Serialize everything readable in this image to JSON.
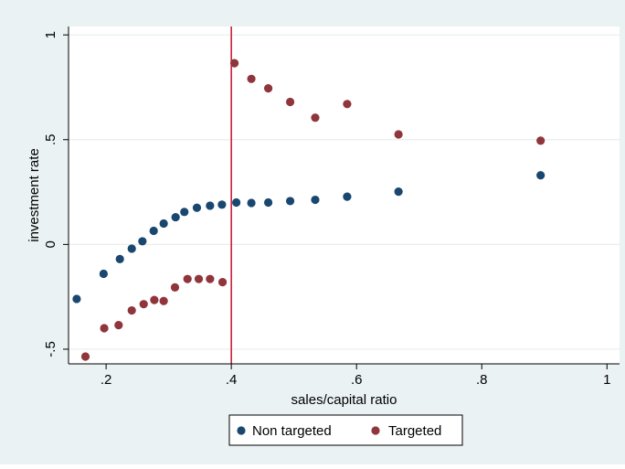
{
  "chart_data": {
    "type": "scatter",
    "xlabel": "sales/capital ratio",
    "ylabel": "investment rate",
    "xlim": [
      0.14,
      1.02
    ],
    "ylim": [
      -0.57,
      1.04
    ],
    "xticks": [
      {
        "value": 0.2,
        "label": ".2"
      },
      {
        "value": 0.4,
        "label": ".4"
      },
      {
        "value": 0.6,
        "label": ".6"
      },
      {
        "value": 0.8,
        "label": ".8"
      },
      {
        "value": 1.0,
        "label": "1"
      }
    ],
    "yticks": [
      {
        "value": -0.5,
        "label": "-.5"
      },
      {
        "value": 0,
        "label": "0"
      },
      {
        "value": 0.5,
        "label": ".5"
      },
      {
        "value": 1,
        "label": "1"
      }
    ],
    "grid": "horizontal",
    "legend_position": "bottom",
    "vline": {
      "x": 0.4,
      "color": "#c8102e"
    },
    "series": [
      {
        "name": "Non targeted",
        "color": "#1a476f",
        "points": [
          [
            0.153,
            -0.26
          ],
          [
            0.196,
            -0.14
          ],
          [
            0.222,
            -0.07
          ],
          [
            0.241,
            -0.02
          ],
          [
            0.258,
            0.015
          ],
          [
            0.276,
            0.065
          ],
          [
            0.292,
            0.1
          ],
          [
            0.311,
            0.13
          ],
          [
            0.325,
            0.155
          ],
          [
            0.345,
            0.175
          ],
          [
            0.366,
            0.185
          ],
          [
            0.385,
            0.19
          ],
          [
            0.408,
            0.2
          ],
          [
            0.432,
            0.198
          ],
          [
            0.459,
            0.2
          ],
          [
            0.494,
            0.207
          ],
          [
            0.534,
            0.213
          ],
          [
            0.585,
            0.228
          ],
          [
            0.667,
            0.252
          ],
          [
            0.894,
            0.33
          ]
        ]
      },
      {
        "name": "Targeted",
        "color": "#90353b",
        "points": [
          [
            0.167,
            -0.535
          ],
          [
            0.197,
            -0.4
          ],
          [
            0.22,
            -0.385
          ],
          [
            0.241,
            -0.315
          ],
          [
            0.26,
            -0.285
          ],
          [
            0.277,
            -0.265
          ],
          [
            0.292,
            -0.27
          ],
          [
            0.31,
            -0.205
          ],
          [
            0.33,
            -0.165
          ],
          [
            0.348,
            -0.165
          ],
          [
            0.366,
            -0.165
          ],
          [
            0.386,
            -0.18
          ],
          [
            0.405,
            0.865
          ],
          [
            0.432,
            0.79
          ],
          [
            0.459,
            0.745
          ],
          [
            0.494,
            0.68
          ],
          [
            0.534,
            0.605
          ],
          [
            0.585,
            0.67
          ],
          [
            0.667,
            0.525
          ],
          [
            0.894,
            0.495
          ]
        ]
      }
    ]
  }
}
